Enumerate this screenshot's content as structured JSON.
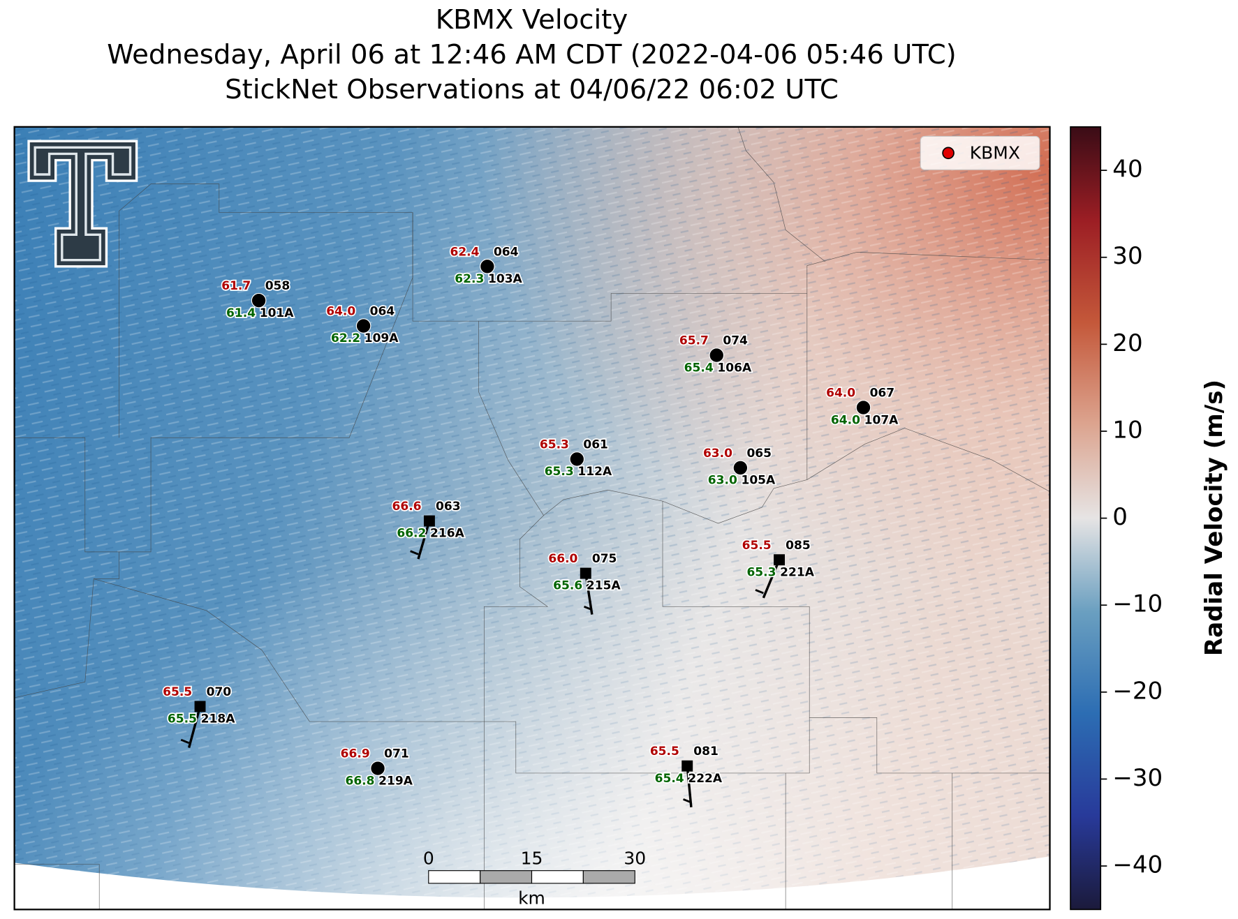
{
  "header": {
    "title": "KBMX Velocity",
    "subtitle": "Wednesday, April 06 at 12:46 AM CDT (2022-04-06 05:46 UTC)",
    "observations": "StickNet Observations at 04/06/22 06:02 UTC"
  },
  "legend": {
    "label": "KBMX"
  },
  "colorbar": {
    "label": "Radial Velocity (m/s)",
    "lim": [
      -45,
      45
    ],
    "ticks": [
      {
        "value": -40,
        "label": "−40"
      },
      {
        "value": -30,
        "label": "−30"
      },
      {
        "value": -20,
        "label": "−20"
      },
      {
        "value": -10,
        "label": "−10"
      },
      0,
      10,
      20,
      30,
      40
    ]
  },
  "scale_bar": {
    "labels": [
      "0",
      "15",
      "30"
    ],
    "unit": "km"
  },
  "stations": [
    {
      "id": "101A",
      "temperature": "61.7",
      "dewpoint": "61.4",
      "pressure": "058"
    },
    {
      "id": "109A",
      "temperature": "64.0",
      "dewpoint": "62.2",
      "pressure": "064"
    },
    {
      "id": "103A",
      "temperature": "62.4",
      "dewpoint": "62.3",
      "pressure": "064"
    },
    {
      "id": "106A",
      "temperature": "65.7",
      "dewpoint": "65.4",
      "pressure": "074"
    },
    {
      "id": "107A",
      "temperature": "64.0",
      "dewpoint": "64.0",
      "pressure": "067"
    },
    {
      "id": "112A",
      "temperature": "65.3",
      "dewpoint": "65.3",
      "pressure": "061"
    },
    {
      "id": "105A",
      "temperature": "63.0",
      "dewpoint": "63.0",
      "pressure": "065"
    },
    {
      "id": "216A",
      "temperature": "66.6",
      "dewpoint": "66.2",
      "pressure": "063"
    },
    {
      "id": "215A",
      "temperature": "66.0",
      "dewpoint": "65.6",
      "pressure": "075"
    },
    {
      "id": "221A",
      "temperature": "65.5",
      "dewpoint": "65.3",
      "pressure": "085"
    },
    {
      "id": "218A",
      "temperature": "65.5",
      "dewpoint": "65.5",
      "pressure": "070"
    },
    {
      "id": "219A",
      "temperature": "66.9",
      "dewpoint": "66.8",
      "pressure": "071"
    },
    {
      "id": "222A",
      "temperature": "65.5",
      "dewpoint": "65.4",
      "pressure": "081"
    }
  ]
}
